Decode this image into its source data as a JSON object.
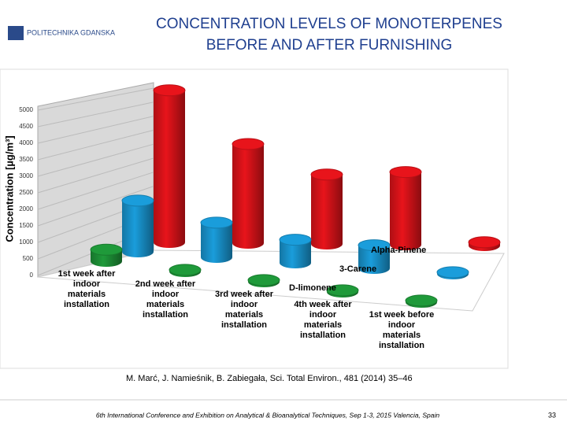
{
  "header": {
    "logo": "POLITECHNIKA GDANSKA",
    "title_lines": [
      "CONCENTRATION LEVELS OF MONOTERPENES",
      "BEFORE AND AFTER FURNISHING"
    ]
  },
  "chart_data": {
    "type": "bar3d",
    "y_label": "Concentration [µg/m³]",
    "categories": [
      "1st week after indoor materials installation",
      "2nd week after indoor materials installation",
      "3rd week after indoor materials installation",
      "4th week after indoor materials installation",
      "1st week before indoor materials installation"
    ],
    "series": [
      {
        "name": "Alpha-Pinene",
        "color": "#e8141b",
        "values": [
          4600,
          3000,
          2100,
          2200,
          100
        ]
      },
      {
        "name": "3-Carene",
        "color": "#1a9ddb",
        "values": [
          1550,
          1050,
          700,
          700,
          50
        ]
      },
      {
        "name": "D-limonene",
        "color": "#1f9a3a",
        "values": [
          350,
          50,
          50,
          50,
          50
        ]
      }
    ],
    "ylim": [
      0,
      5000
    ],
    "yticks": [
      0,
      500,
      1000,
      1500,
      2000,
      2500,
      3000,
      3500,
      4000,
      4500,
      5000
    ],
    "grid": true
  },
  "citation": "M. Marć, J. Namieśnik, B. Zabiegała, Sci. Total Environ., 481 (2014) 35–46",
  "footer": {
    "conference": "6th International Conference and Exhibition on Analytical & Bioanalytical Techniques, Sep 1-3, 2015 Valencia, Spain",
    "page": "33"
  }
}
